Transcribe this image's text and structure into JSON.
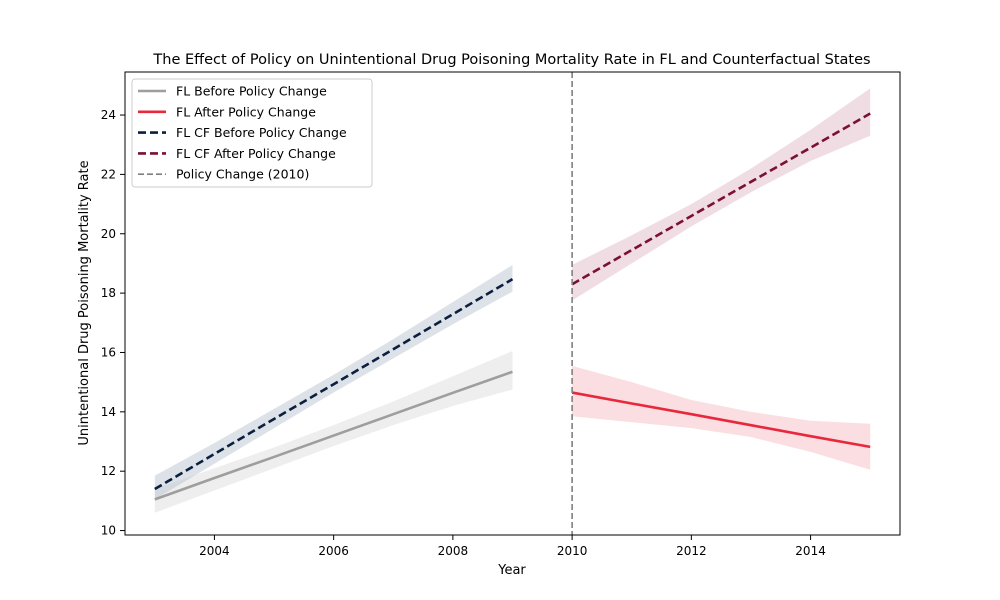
{
  "chart_data": {
    "type": "line",
    "title": "The Effect of Policy on Unintentional Drug Poisoning Mortality Rate in FL and Counterfactual States",
    "xlabel": "Year",
    "ylabel": "Unintentional Drug Poisoning Mortality Rate",
    "xlim": [
      2002.5,
      2015.5
    ],
    "ylim": [
      9.85,
      25.45
    ],
    "x_ticks": [
      2004,
      2006,
      2008,
      2010,
      2012,
      2014
    ],
    "y_ticks": [
      10,
      12,
      14,
      16,
      18,
      20,
      22,
      24
    ],
    "grid": false,
    "legend_position": "top-left",
    "policy_line": {
      "x": 2010,
      "label": "Policy Change (2010)",
      "color": "#808080",
      "style": "dashed"
    },
    "series": [
      {
        "name": "FL Before Policy Change",
        "color": "#9e9e9e",
        "band_color": "#d9d9d9",
        "style": "solid",
        "x": [
          2003,
          2004,
          2005,
          2006,
          2007,
          2008,
          2009
        ],
        "y": [
          11.05,
          11.77,
          12.48,
          13.2,
          13.92,
          14.64,
          15.35
        ],
        "lower": [
          10.6,
          11.35,
          12.1,
          12.85,
          13.55,
          14.2,
          14.75
        ],
        "upper": [
          11.4,
          12.1,
          12.8,
          13.55,
          14.35,
          15.2,
          16.05
        ]
      },
      {
        "name": "FL After Policy Change",
        "color": "#e8293d",
        "band_color": "#f7b5bd",
        "style": "solid",
        "x": [
          2010,
          2011,
          2012,
          2013,
          2014,
          2015
        ],
        "y": [
          14.65,
          14.28,
          13.92,
          13.55,
          13.18,
          12.82
        ],
        "lower": [
          13.85,
          13.65,
          13.45,
          13.15,
          12.65,
          12.05
        ],
        "upper": [
          15.55,
          15.0,
          14.4,
          14.0,
          13.7,
          13.6
        ]
      },
      {
        "name": "FL CF Before Policy Change",
        "color": "#0b1f3f",
        "band_color": "#b3bfcf",
        "style": "dashed",
        "x": [
          2003,
          2004,
          2005,
          2006,
          2007,
          2008,
          2009
        ],
        "y": [
          11.4,
          12.58,
          13.76,
          14.93,
          16.11,
          17.29,
          18.47
        ],
        "lower": [
          11.05,
          12.25,
          13.45,
          14.65,
          15.8,
          16.95,
          18.05
        ],
        "upper": [
          11.85,
          12.95,
          14.1,
          15.25,
          16.45,
          17.7,
          18.95
        ]
      },
      {
        "name": "FL CF After Policy Change",
        "color": "#7c0f34",
        "band_color": "#dbb3c0",
        "style": "dashed",
        "x": [
          2010,
          2011,
          2012,
          2013,
          2014,
          2015
        ],
        "y": [
          18.3,
          19.45,
          20.6,
          21.75,
          22.9,
          24.05
        ],
        "lower": [
          17.75,
          19.0,
          20.25,
          21.4,
          22.45,
          23.3
        ],
        "upper": [
          18.95,
          19.95,
          21.0,
          22.2,
          23.5,
          24.9
        ]
      }
    ]
  }
}
